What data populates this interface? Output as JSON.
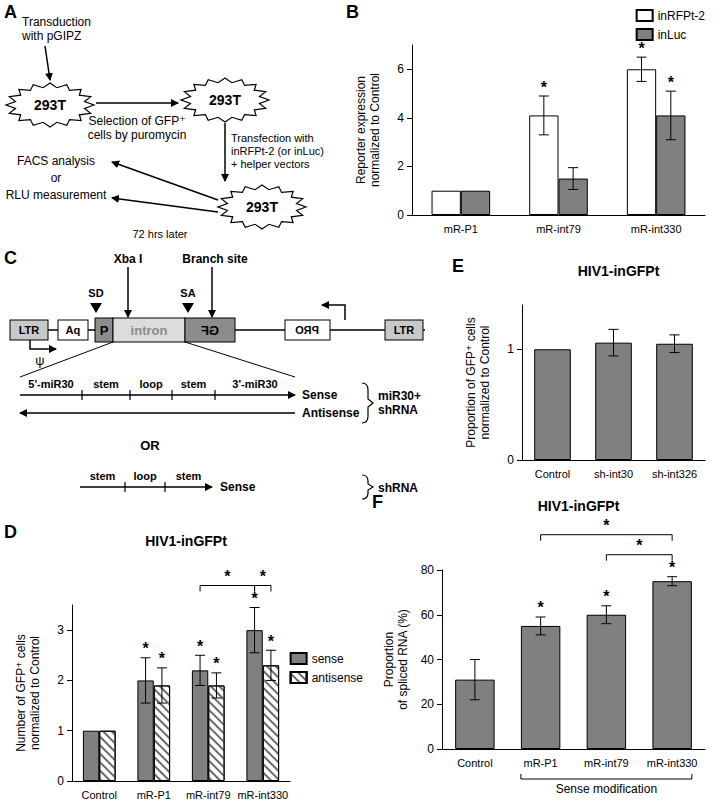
{
  "panel_letters": [
    "A",
    "B",
    "C",
    "D",
    "E",
    "F"
  ],
  "diagram_a": {
    "cells": [
      "293T",
      "293T",
      "293T"
    ],
    "steps": [
      "Transduction\nwith pGIPZ",
      "Selection of GFP⁺\ncells by puromycin",
      "Transfection with\ninRFPt-2 (or inLuc)\n+ helper vectors",
      "72 hrs later",
      "FACS analysis\nor\nRLU measurement"
    ]
  },
  "diagram_c": {
    "vector": {
      "ltr": [
        "LTR",
        "LTR"
      ],
      "pa": "pA",
      "gfp_left": "P",
      "intron": "intron",
      "gfp_right": "GF",
      "promoter": "PRO",
      "psi": "ψ",
      "sd": "SD",
      "sa": "SA",
      "xba": "Xba I",
      "branch": "Branch site"
    },
    "mir_construct": {
      "segments": [
        "5'-miR30",
        "stem",
        "loop",
        "stem",
        "3'-miR30"
      ],
      "strands": [
        "Sense",
        "Antisense"
      ],
      "label": "miR30+\nshRNA"
    },
    "or": "OR",
    "sh_construct": {
      "segments": [
        "stem",
        "loop",
        "stem"
      ],
      "strands": [
        "Sense"
      ],
      "label": "shRNA"
    }
  },
  "chart_data": [
    {
      "type": "bar",
      "categories": [
        "mR-P1",
        "mR-int79",
        "mR-int330"
      ],
      "series": [
        {
          "name": "inRFPt-2",
          "color": "#ffffff",
          "values": [
            1,
            4.1,
            6.0
          ],
          "errors": [
            0,
            0.8,
            0.5
          ]
        },
        {
          "name": "inLuc",
          "color": "#808080",
          "values": [
            1,
            1.5,
            4.1
          ],
          "errors": [
            0,
            0.45,
            1.0
          ]
        }
      ],
      "y_label": "Reporter expression\nnormalized to Control",
      "ylim": [
        0,
        7
      ],
      "yticks": [
        0,
        2,
        4,
        6
      ],
      "grid": false,
      "legend": "upper right",
      "annotations": [
        {
          "text": "*",
          "category": "mR-int79",
          "series": "inRFPt-2"
        },
        {
          "text": "*",
          "category": "mR-int330",
          "series": "inRFPt-2"
        },
        {
          "text": "*",
          "category": "mR-int330",
          "series": "inLuc"
        }
      ]
    },
    {
      "type": "bar",
      "title": "HIV1-inGFPt",
      "categories": [
        "Control",
        "mR-P1",
        "mR-int79",
        "mR-int330"
      ],
      "series": [
        {
          "name": "sense",
          "color": "#808080",
          "values": [
            1,
            2.0,
            2.2,
            3.0
          ],
          "errors": [
            0,
            0.45,
            0.3,
            0.45
          ]
        },
        {
          "name": "antisense",
          "color": "#ffffff",
          "line_style": "hatched",
          "values": [
            1,
            1.9,
            1.9,
            2.3
          ],
          "errors": [
            0,
            0.35,
            0.25,
            0.3
          ]
        }
      ],
      "y_label": "Number of GFP⁺ cells\nnormalized to Control",
      "ylim": [
        0,
        3.5
      ],
      "yticks": [
        0,
        1,
        2,
        3
      ],
      "grid": false,
      "legend": "right",
      "annotations": [
        {
          "text": "*",
          "category": "mR-P1",
          "series": "sense"
        },
        {
          "text": "*",
          "category": "mR-P1",
          "series": "antisense"
        },
        {
          "text": "*",
          "category": "mR-int79",
          "series": "sense"
        },
        {
          "text": "*",
          "category": "mR-int79",
          "series": "antisense"
        },
        {
          "text": "*",
          "category": "mR-int330",
          "series": "sense"
        },
        {
          "text": "*",
          "category": "mR-int330",
          "series": "antisense"
        },
        {
          "text": "*",
          "from": {
            "category": "mR-int79",
            "series": "sense"
          },
          "to": {
            "category": "mR-int330",
            "series": "sense"
          }
        },
        {
          "text": "*",
          "from": {
            "category": "mR-int330",
            "series": "sense"
          },
          "to": {
            "category": "mR-int330",
            "series": "antisense"
          }
        }
      ]
    },
    {
      "type": "bar",
      "title": "HIV1-inGFPt",
      "categories": [
        "Control",
        "sh-int30",
        "sh-int326"
      ],
      "values": [
        1,
        1.06,
        1.05
      ],
      "errors": [
        0,
        0.12,
        0.08
      ],
      "color": "#808080",
      "y_label": "Proportion of GFP⁺ cells\nnormalized to Control",
      "ylim": [
        0,
        1.4
      ],
      "yticks": [
        0,
        1
      ],
      "grid": false
    },
    {
      "type": "bar",
      "title": "HIV1-inGFPt",
      "categories": [
        "Control",
        "mR-P1",
        "mR-int79",
        "mR-int330"
      ],
      "values": [
        31,
        55,
        60,
        75
      ],
      "errors": [
        9,
        4,
        4,
        2
      ],
      "color": "#808080",
      "y_label": "Proportion\nof spliced RNA (%)",
      "ylim": [
        0,
        80
      ],
      "yticks": [
        0,
        20,
        40,
        60,
        80
      ],
      "grid": false,
      "annotations": [
        {
          "text": "*",
          "category": "mR-P1"
        },
        {
          "text": "*",
          "category": "mR-int79"
        },
        {
          "text": "*",
          "category": "mR-int330"
        },
        {
          "text": "*",
          "from": {
            "category": "mR-P1"
          },
          "to": {
            "category": "mR-int330"
          }
        },
        {
          "text": "*",
          "from": {
            "category": "mR-int79"
          },
          "to": {
            "category": "mR-int330"
          }
        },
        {
          "text": "Sense modification",
          "from": {
            "category": "mR-P1"
          },
          "to": {
            "category": "mR-int330"
          },
          "position": "below"
        }
      ]
    }
  ]
}
